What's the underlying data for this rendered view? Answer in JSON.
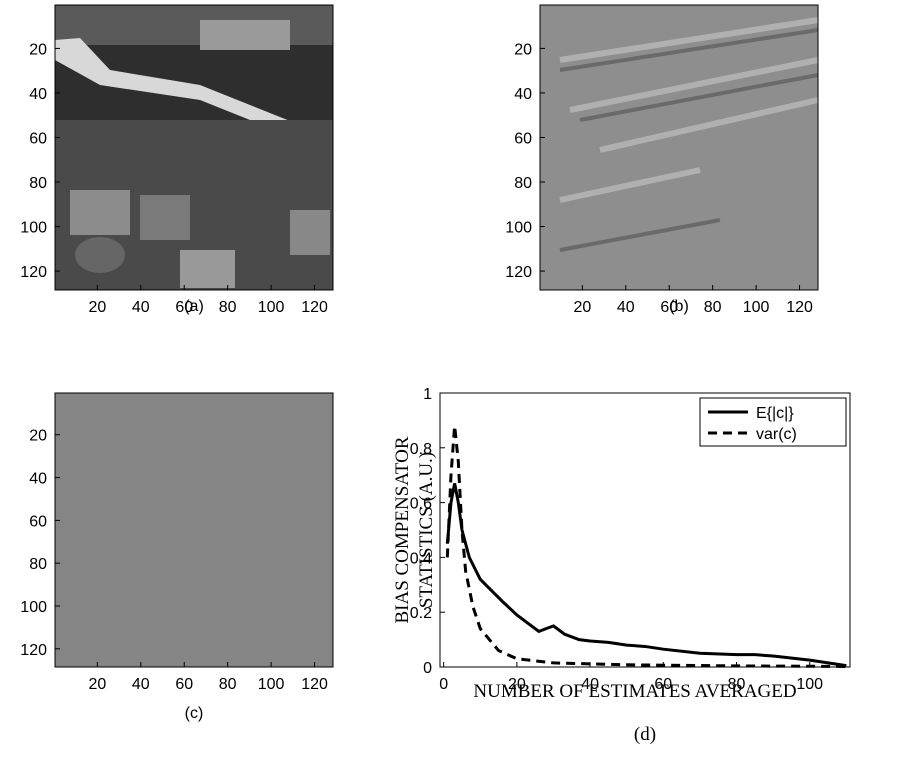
{
  "chart_data": [
    {
      "type": "image",
      "caption": "(a)",
      "xlim": [
        0.5,
        128.5
      ],
      "ylim": [
        0.5,
        128.5
      ],
      "xticks": [
        20,
        40,
        60,
        80,
        100,
        120
      ],
      "yticks": [
        20,
        40,
        60,
        80,
        100,
        120
      ]
    },
    {
      "type": "image",
      "caption": "(b)",
      "xlim": [
        0.5,
        128.5
      ],
      "ylim": [
        0.5,
        128.5
      ],
      "xticks": [
        20,
        40,
        60,
        80,
        100,
        120
      ],
      "yticks": [
        20,
        40,
        60,
        80,
        100,
        120
      ]
    },
    {
      "type": "image",
      "caption": "(c)",
      "xlim": [
        0.5,
        128.5
      ],
      "ylim": [
        0.5,
        128.5
      ],
      "xticks": [
        20,
        40,
        60,
        80,
        100,
        120
      ],
      "yticks": [
        20,
        40,
        60,
        80,
        100,
        120
      ]
    },
    {
      "type": "line",
      "caption": "(d)",
      "xlabel": "NUMBER OF ESTIMATES AVERAGED",
      "ylabel": [
        "BIAS COMPENSATOR",
        "STATISTICS (A.U.)"
      ],
      "xlim": [
        -1,
        111
      ],
      "ylim": [
        0,
        1
      ],
      "xticks": [
        0,
        20,
        40,
        60,
        80,
        100
      ],
      "yticks": [
        0,
        0.2,
        0.4,
        0.6,
        0.8,
        1
      ],
      "legend": "upper right",
      "series": [
        {
          "name": "E{|c|}",
          "color": "#000",
          "dash": false,
          "x": [
            1,
            2,
            3,
            4,
            5,
            7,
            10,
            13,
            16,
            20,
            24,
            26,
            28,
            30,
            33,
            37,
            40,
            45,
            50,
            55,
            60,
            70,
            80,
            85,
            90,
            100,
            110
          ],
          "values": [
            0.45,
            0.6,
            0.67,
            0.6,
            0.5,
            0.4,
            0.32,
            0.28,
            0.24,
            0.19,
            0.15,
            0.13,
            0.14,
            0.15,
            0.12,
            0.1,
            0.095,
            0.09,
            0.08,
            0.075,
            0.065,
            0.05,
            0.045,
            0.045,
            0.04,
            0.025,
            0.005
          ]
        },
        {
          "name": "var(c)",
          "color": "#000",
          "dash": true,
          "x": [
            1,
            2,
            3,
            4,
            5,
            6,
            8,
            10,
            15,
            20,
            30,
            50,
            80,
            110
          ],
          "values": [
            0.4,
            0.7,
            0.88,
            0.75,
            0.5,
            0.35,
            0.22,
            0.14,
            0.06,
            0.03,
            0.015,
            0.008,
            0.004,
            0.002
          ]
        }
      ]
    }
  ]
}
